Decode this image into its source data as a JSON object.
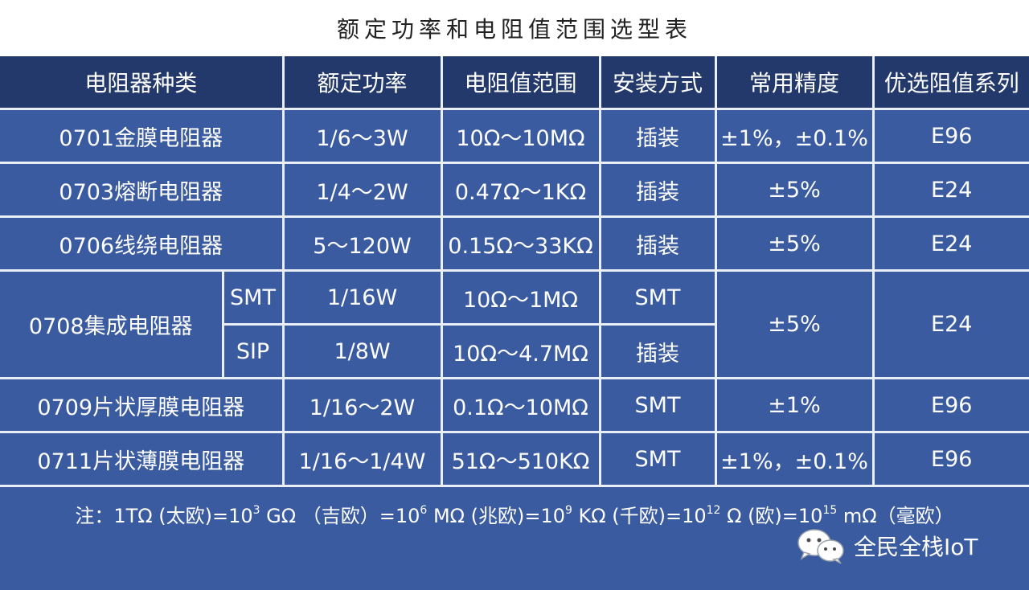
{
  "title": "额定功率和电阻值范围选型表",
  "table": {
    "headers": [
      "电阻器种类",
      "额定功率",
      "电阻值范围",
      "安装方式",
      "常用精度",
      "优选阻值系列"
    ],
    "rows": [
      {
        "type": "0701金膜电阻器",
        "power": "1/6～3W",
        "range": "10Ω～10MΩ",
        "mount": "插装",
        "precision": "±1%，±0.1%",
        "series": "E96"
      },
      {
        "type": "0703熔断电阻器",
        "power": "1/4～2W",
        "range": "0.47Ω～1KΩ",
        "mount": "插装",
        "precision": "±5%",
        "series": "E24"
      },
      {
        "type": "0706线绕电阻器",
        "power": "5～120W",
        "range": "0.15Ω～33KΩ",
        "mount": "插装",
        "precision": "±5%",
        "series": "E24"
      }
    ],
    "integrated": {
      "type": "0708集成电阻器",
      "precision": "±5%",
      "series": "E24",
      "sub": [
        {
          "name": "SMT",
          "power": "1/16W",
          "range": "10Ω～1MΩ",
          "mount": "SMT"
        },
        {
          "name": "SIP",
          "power": "1/8W",
          "range": "10Ω～4.7MΩ",
          "mount": "插装"
        }
      ]
    },
    "rows_after": [
      {
        "type": "0709片状厚膜电阻器",
        "power": "1/16～2W",
        "range": "0.1Ω～10MΩ",
        "mount": "SMT",
        "precision": "±1%",
        "series": "E96"
      },
      {
        "type": "0711片状薄膜电阻器",
        "power": "1/16～1/4W",
        "range": "51Ω～510KΩ",
        "mount": "SMT",
        "precision": "±1%，±0.1%",
        "series": "E96"
      }
    ]
  },
  "note": {
    "p1": "注：1TΩ (太欧)=10",
    "e1": "3",
    "p2": " GΩ （吉欧）=10",
    "e2": "6",
    "p3": " MΩ (兆欧)=10",
    "e3": "9",
    "p4": " KΩ (千欧)=10",
    "e4": "12",
    "p5": " Ω (欧)=10",
    "e5": "15",
    "p6": " mΩ（毫欧）"
  },
  "brand": {
    "icon": "wechat-icon",
    "text": "全民全栈IoT"
  },
  "colors": {
    "header_bg": "#23396c",
    "cell_bg": "#3a5ba0",
    "grid_line": "#e9eef7"
  }
}
